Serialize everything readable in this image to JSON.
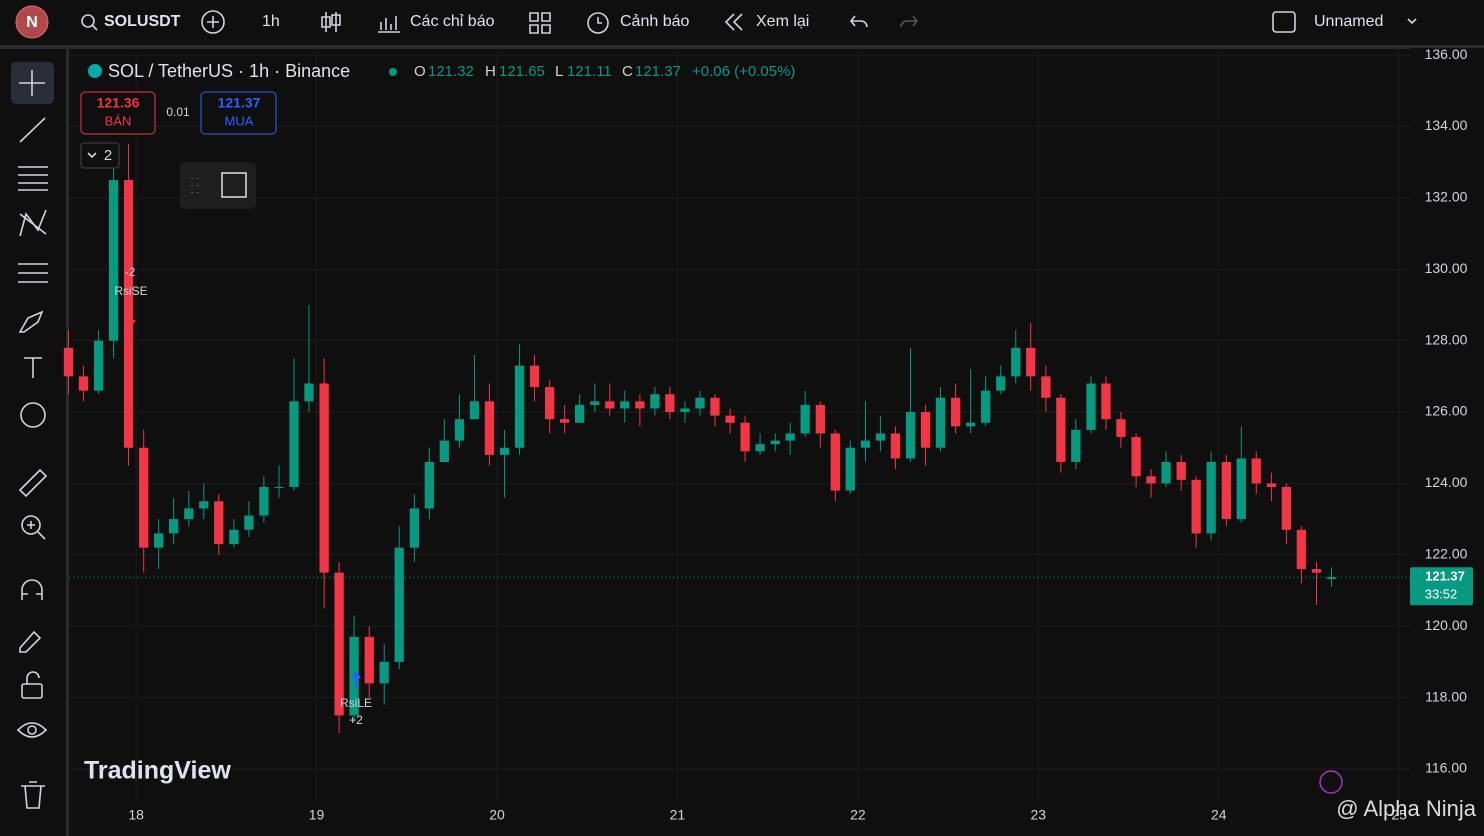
{
  "toolbar": {
    "avatar": "N",
    "symbol": "SOLUSDT",
    "interval": "1h",
    "indicators": "Các chỉ báo",
    "alerts": "Cảnh báo",
    "replay": "Xem lại",
    "layout": "Unnamed"
  },
  "legend": {
    "title": "SOL / TetherUS · 1h · Binance",
    "o_label": "O",
    "open": 121.32,
    "h_label": "H",
    "high": 121.65,
    "l_label": "L",
    "low": 121.11,
    "c_label": "C",
    "close": 121.37,
    "change": "+0.06 (+0.05%)"
  },
  "trade": {
    "sell_price": 121.36,
    "sell_label": "BÁN",
    "spread": 0.01,
    "buy_price": 121.37,
    "buy_label": "MUA",
    "layers": 2
  },
  "markers": {
    "short_name": "RsiSE",
    "short_qty": "-2",
    "long_name": "RsiLE",
    "long_qty": "+2"
  },
  "branding": {
    "logo": "TradingView",
    "watermark": "@ Alpha Ninja"
  },
  "chart_data": {
    "type": "candlestick",
    "up_color": "#089981",
    "down_color": "#f23645",
    "candles": [
      [
        17.625,
        127.8,
        128.3,
        126.5,
        127
      ],
      [
        17.708,
        127,
        127.3,
        126.3,
        126.6
      ],
      [
        17.792,
        126.6,
        128.3,
        126.5,
        128
      ],
      [
        17.875,
        128,
        133,
        127.5,
        132.5
      ],
      [
        17.958,
        132.5,
        133.5,
        124.5,
        125
      ],
      [
        18.042,
        125,
        125.5,
        121.5,
        122.2
      ],
      [
        18.125,
        122.2,
        123,
        121.6,
        122.6
      ],
      [
        18.208,
        122.6,
        123.6,
        122.3,
        123
      ],
      [
        18.292,
        123,
        123.8,
        122.8,
        123.3
      ],
      [
        18.375,
        123.3,
        124,
        123,
        123.5
      ],
      [
        18.458,
        123.5,
        123.7,
        122,
        122.3
      ],
      [
        18.542,
        122.3,
        123,
        122.2,
        122.7
      ],
      [
        18.625,
        122.7,
        123.5,
        122.5,
        123.1
      ],
      [
        18.708,
        123.1,
        124.2,
        122.9,
        123.9
      ],
      [
        18.792,
        123.9,
        124.5,
        123.6,
        123.9
      ],
      [
        18.875,
        123.9,
        127.5,
        123.8,
        126.3
      ],
      [
        18.958,
        126.3,
        129,
        126,
        126.8
      ],
      [
        19.042,
        126.8,
        127.5,
        120.5,
        121.5
      ],
      [
        19.125,
        121.5,
        121.8,
        117,
        117.5
      ],
      [
        19.208,
        117.5,
        120.3,
        117.3,
        119.7
      ],
      [
        19.292,
        119.7,
        120,
        118,
        118.4
      ],
      [
        19.375,
        118.4,
        119.5,
        117.8,
        119
      ],
      [
        19.458,
        119,
        122.8,
        118.8,
        122.2
      ],
      [
        19.542,
        122.2,
        123.7,
        121.8,
        123.3
      ],
      [
        19.625,
        123.3,
        125,
        123,
        124.6
      ],
      [
        19.708,
        124.6,
        125.8,
        124.6,
        125.2
      ],
      [
        19.792,
        125.2,
        126.5,
        125,
        125.8
      ],
      [
        19.875,
        125.8,
        127.6,
        125.8,
        126.3
      ],
      [
        19.958,
        126.3,
        126.8,
        124.5,
        124.8
      ],
      [
        20.042,
        124.8,
        125.5,
        123.6,
        125
      ],
      [
        20.125,
        125,
        127.9,
        124.8,
        127.3
      ],
      [
        20.208,
        127.3,
        127.6,
        126.3,
        126.7
      ],
      [
        20.292,
        126.7,
        126.9,
        125.4,
        125.8
      ],
      [
        20.375,
        125.8,
        126.2,
        125.4,
        125.7
      ],
      [
        20.458,
        125.7,
        126.5,
        125.7,
        126.2
      ],
      [
        20.542,
        126.2,
        126.8,
        126,
        126.3
      ],
      [
        20.625,
        126.3,
        126.8,
        125.9,
        126.1
      ],
      [
        20.708,
        126.1,
        126.6,
        125.7,
        126.3
      ],
      [
        20.792,
        126.3,
        126.5,
        125.6,
        126.1
      ],
      [
        20.875,
        126.1,
        126.7,
        125.9,
        126.5
      ],
      [
        20.958,
        126.5,
        126.7,
        125.8,
        126
      ],
      [
        21.042,
        126,
        126.3,
        125.7,
        126.1
      ],
      [
        21.125,
        126.1,
        126.6,
        125.9,
        126.4
      ],
      [
        21.208,
        126.4,
        126.5,
        125.6,
        125.9
      ],
      [
        21.292,
        125.9,
        126.1,
        125.4,
        125.7
      ],
      [
        21.375,
        125.7,
        125.9,
        124.6,
        124.9
      ],
      [
        21.458,
        124.9,
        125.4,
        124.8,
        125.1
      ],
      [
        21.542,
        125.1,
        125.4,
        124.9,
        125.2
      ],
      [
        21.625,
        125.2,
        125.7,
        124.8,
        125.4
      ],
      [
        21.708,
        125.4,
        126.6,
        125.3,
        126.2
      ],
      [
        21.792,
        126.2,
        126.3,
        125,
        125.4
      ],
      [
        21.875,
        125.4,
        125.5,
        123.5,
        123.8
      ],
      [
        21.958,
        123.8,
        125.2,
        123.7,
        125
      ],
      [
        22.042,
        125,
        126.3,
        124.6,
        125.2
      ],
      [
        22.125,
        125.2,
        125.9,
        124.9,
        125.4
      ],
      [
        22.208,
        125.4,
        125.6,
        124.4,
        124.7
      ],
      [
        22.292,
        124.7,
        127.8,
        124.6,
        126
      ],
      [
        22.375,
        126,
        126.2,
        124.5,
        125
      ],
      [
        22.458,
        125,
        126.7,
        124.9,
        126.4
      ],
      [
        22.542,
        126.4,
        126.8,
        125.4,
        125.6
      ],
      [
        22.625,
        125.6,
        127.2,
        125.4,
        125.7
      ],
      [
        22.708,
        125.7,
        127,
        125.6,
        126.6
      ],
      [
        22.792,
        126.6,
        127.3,
        126.5,
        127
      ],
      [
        22.875,
        127,
        128.3,
        126.8,
        127.8
      ],
      [
        22.958,
        127.8,
        128.5,
        126.6,
        127
      ],
      [
        23.042,
        127,
        127.3,
        126,
        126.4
      ],
      [
        23.125,
        126.4,
        126.5,
        124.3,
        124.6
      ],
      [
        23.208,
        124.6,
        125.8,
        124.4,
        125.5
      ],
      [
        23.292,
        125.5,
        127,
        125.4,
        126.8
      ],
      [
        23.375,
        126.8,
        127,
        125.5,
        125.8
      ],
      [
        23.458,
        125.8,
        126,
        125,
        125.3
      ],
      [
        23.542,
        125.3,
        125.4,
        123.9,
        124.2
      ],
      [
        23.625,
        124.2,
        124.4,
        123.6,
        124
      ],
      [
        23.708,
        124,
        124.9,
        123.9,
        124.6
      ],
      [
        23.792,
        124.6,
        124.8,
        123.8,
        124.1
      ],
      [
        23.875,
        124.1,
        124.2,
        122.2,
        122.6
      ],
      [
        23.958,
        122.6,
        124.9,
        122.4,
        124.6
      ],
      [
        24.042,
        124.6,
        124.8,
        122.8,
        123
      ],
      [
        24.125,
        123,
        125.6,
        122.9,
        124.7
      ],
      [
        24.208,
        124.7,
        124.9,
        123.7,
        124
      ],
      [
        24.292,
        124,
        124.3,
        123.5,
        123.9
      ],
      [
        24.375,
        123.9,
        124,
        122.3,
        122.7
      ],
      [
        24.458,
        122.7,
        122.8,
        121.2,
        121.6
      ],
      [
        24.542,
        121.6,
        121.8,
        120.6,
        121.5
      ],
      [
        24.625,
        121.32,
        121.65,
        121.11,
        121.37
      ]
    ],
    "xlim": [
      17.628,
      25.06
    ],
    "xticks": [
      18,
      19,
      20,
      21,
      22,
      23,
      24,
      25
    ],
    "ylim": [
      115.13,
      136.2
    ],
    "yticks": [
      {
        "value": 116,
        "label": "116.00"
      },
      {
        "value": 118,
        "label": "118.00"
      },
      {
        "value": 120,
        "label": "120.00"
      },
      {
        "value": 122,
        "label": "122.00"
      },
      {
        "value": 124,
        "label": "124.00"
      },
      {
        "value": 126,
        "label": "126.00"
      },
      {
        "value": 128,
        "label": "128.00"
      },
      {
        "value": 130,
        "label": "130.00"
      },
      {
        "value": 132,
        "label": "132.00"
      },
      {
        "value": 134,
        "label": "134.00"
      },
      {
        "value": 136,
        "label": "136.00"
      }
    ],
    "grid": true,
    "last_price": 121.37,
    "countdown": "33:52"
  }
}
